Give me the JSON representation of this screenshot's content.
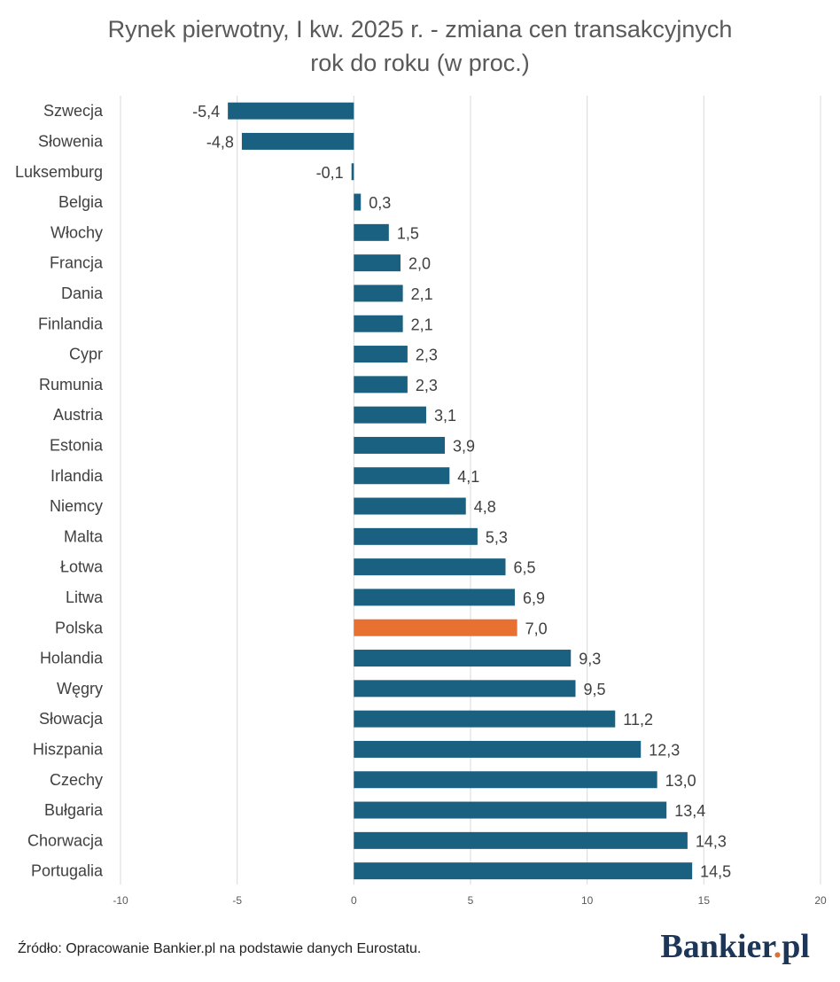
{
  "title_line1": "Rynek pierwotny, I kw. 2025 r. - zmiana cen transakcyjnych",
  "title_line2": "rok do roku (w proc.)",
  "source": "Źródło: Opracowanie Bankier.pl na podstawie danych Eurostatu.",
  "brand": {
    "name": "Bankier",
    "dot": ".",
    "suffix": "pl"
  },
  "colors": {
    "bar": "#1a6080",
    "highlight": "#e87131",
    "grid": "#d9d9d9",
    "text": "#404040",
    "tick": "#595959"
  },
  "chart_data": {
    "type": "bar",
    "orientation": "horizontal",
    "categories": [
      "Szwecja",
      "Słowenia",
      "Luksemburg",
      "Belgia",
      "Włochy",
      "Francja",
      "Dania",
      "Finlandia",
      "Cypr",
      "Rumunia",
      "Austria",
      "Estonia",
      "Irlandia",
      "Niemcy",
      "Malta",
      "Łotwa",
      "Litwa",
      "Polska",
      "Holandia",
      "Węgry",
      "Słowacja",
      "Hiszpania",
      "Czechy",
      "Bułgaria",
      "Chorwacja",
      "Portugalia"
    ],
    "values": [
      -5.4,
      -4.8,
      -0.1,
      0.3,
      1.5,
      2.0,
      2.1,
      2.1,
      2.3,
      2.3,
      3.1,
      3.9,
      4.1,
      4.8,
      5.3,
      6.5,
      6.9,
      7.0,
      9.3,
      9.5,
      11.2,
      12.3,
      13.0,
      13.4,
      14.3,
      14.5
    ],
    "labels": [
      "-5,4",
      "-4,8",
      "-0,1",
      "0,3",
      "1,5",
      "2,0",
      "2,1",
      "2,1",
      "2,3",
      "2,3",
      "3,1",
      "3,9",
      "4,1",
      "4,8",
      "5,3",
      "6,5",
      "6,9",
      "7,0",
      "9,3",
      "9,5",
      "11,2",
      "12,3",
      "13,0",
      "13,4",
      "14,3",
      "14,5"
    ],
    "highlight": "Polska",
    "xlim": [
      -10,
      20
    ],
    "xticks": [
      "-10",
      "-5",
      "0",
      "5",
      "10",
      "15",
      "20"
    ],
    "xtick_values": [
      -10,
      -5,
      0,
      5,
      10,
      15,
      20
    ],
    "grid": "vertical"
  }
}
